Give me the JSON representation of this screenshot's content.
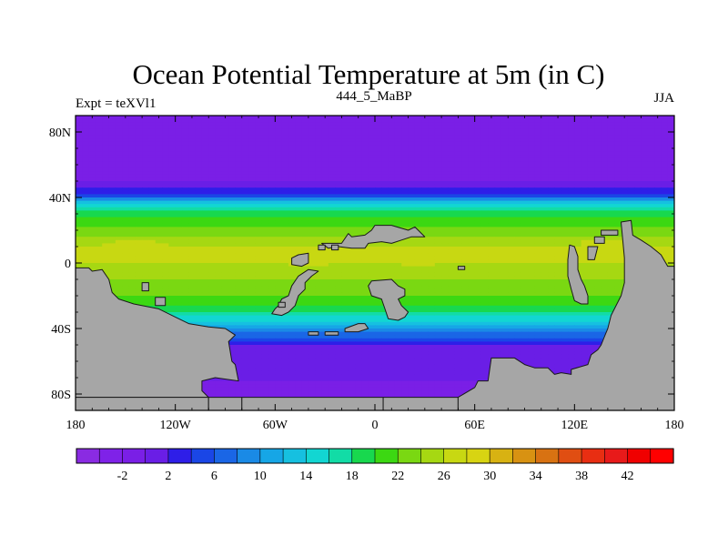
{
  "chart_data": {
    "type": "heatmap",
    "title": "Ocean Potential Temperature at 5m (in C)",
    "left_label": "Expt = teXVl1",
    "center_label": "444_5_MaBP",
    "right_label": "JJA",
    "units": "C",
    "x_range": [
      -180,
      180
    ],
    "y_range": [
      -90,
      90
    ],
    "x_ticks": [
      {
        "value": -180,
        "label": "180"
      },
      {
        "value": -120,
        "label": "120W"
      },
      {
        "value": -60,
        "label": "60W"
      },
      {
        "value": 0,
        "label": "0"
      },
      {
        "value": 60,
        "label": "60E"
      },
      {
        "value": 120,
        "label": "120E"
      },
      {
        "value": 180,
        "label": "180"
      }
    ],
    "y_ticks": [
      {
        "value": 80,
        "label": "80N"
      },
      {
        "value": 40,
        "label": "40N"
      },
      {
        "value": 0,
        "label": "0"
      },
      {
        "value": -40,
        "label": "40S"
      },
      {
        "value": -80,
        "label": "80S"
      }
    ],
    "colorbar": {
      "min": -6,
      "max": 46,
      "step": 2,
      "tick_values": [
        -2,
        2,
        6,
        10,
        14,
        18,
        22,
        26,
        30,
        34,
        38,
        42
      ],
      "tick_labels": [
        "-2",
        "2",
        "6",
        "10",
        "14",
        "18",
        "22",
        "26",
        "30",
        "34",
        "38",
        "42"
      ],
      "colors": [
        "#8a2be2",
        "#7f22e8",
        "#7a1fe6",
        "#6a1ee6",
        "#2e1ee8",
        "#1a46e6",
        "#1a66e6",
        "#1a8ae6",
        "#16a6e6",
        "#16c0e0",
        "#12d6d2",
        "#12dca6",
        "#18d84e",
        "#3cd812",
        "#7ad812",
        "#a6d812",
        "#c8d812",
        "#d8d412",
        "#d8b212",
        "#d89212",
        "#d87212",
        "#e04e12",
        "#e82e12",
        "#e81a1a",
        "#f00000",
        "#ff0000"
      ]
    },
    "zonal_mean_temperature": [
      {
        "lat": 90,
        "value": -1
      },
      {
        "lat": 52,
        "value": -1
      },
      {
        "lat": 45,
        "value": 2
      },
      {
        "lat": 40,
        "value": 6
      },
      {
        "lat": 37,
        "value": 13
      },
      {
        "lat": 30,
        "value": 19
      },
      {
        "lat": 20,
        "value": 23
      },
      {
        "lat": 10,
        "value": 26
      },
      {
        "lat": 0,
        "value": 26
      },
      {
        "lat": -10,
        "value": 24
      },
      {
        "lat": -20,
        "value": 22
      },
      {
        "lat": -30,
        "value": 18
      },
      {
        "lat": -38,
        "value": 12
      },
      {
        "lat": -45,
        "value": 6
      },
      {
        "lat": -52,
        "value": 1
      },
      {
        "lat": -90,
        "value": -1
      }
    ],
    "warm_anomalies": [
      {
        "lon": -145,
        "lat": 8,
        "value": 27.5
      },
      {
        "lon": -40,
        "lat": 4,
        "value": 27.5
      },
      {
        "lon": 25,
        "lat": 3,
        "value": 27
      },
      {
        "lon": 140,
        "lat": 10,
        "value": 27
      }
    ],
    "land_mask": [
      [
        [
          -170,
          -5
        ],
        [
          -164,
          -4
        ],
        [
          -160,
          -10
        ],
        [
          -158,
          -18
        ],
        [
          -154,
          -22
        ],
        [
          -145,
          -25
        ],
        [
          -130,
          -28
        ],
        [
          -120,
          -33
        ],
        [
          -112,
          -37
        ],
        [
          -100,
          -39
        ],
        [
          -90,
          -40
        ],
        [
          -84,
          -44
        ],
        [
          -88,
          -48
        ],
        [
          -86,
          -60
        ],
        [
          -84,
          -62
        ],
        [
          -82,
          -72
        ],
        [
          -96,
          -70
        ],
        [
          -104,
          -72
        ],
        [
          -104,
          -78
        ],
        [
          -100,
          -82
        ],
        [
          -180,
          -82
        ],
        [
          -180,
          -3
        ],
        [
          -172,
          -3
        ]
      ],
      [
        [
          -140,
          -12
        ],
        [
          -136,
          -12
        ],
        [
          -136,
          -17
        ],
        [
          -140,
          -17
        ]
      ],
      [
        [
          -132,
          -21
        ],
        [
          -126,
          -21
        ],
        [
          -126,
          -26
        ],
        [
          -132,
          -26
        ]
      ],
      [
        [
          -180,
          -82
        ],
        [
          -100,
          -82
        ],
        [
          -100,
          -90
        ],
        [
          -180,
          -90
        ]
      ],
      [
        [
          -100,
          -82
        ],
        [
          -80,
          -82
        ],
        [
          -80,
          -90
        ],
        [
          -100,
          -90
        ]
      ],
      [
        [
          -80,
          -82
        ],
        [
          5,
          -82
        ],
        [
          5,
          -90
        ],
        [
          -80,
          -90
        ]
      ],
      [
        [
          5,
          -82
        ],
        [
          50,
          -82
        ],
        [
          50,
          -90
        ],
        [
          5,
          -90
        ]
      ],
      [
        [
          50,
          -82
        ],
        [
          60,
          -76
        ],
        [
          62,
          -72
        ],
        [
          68,
          -72
        ],
        [
          70,
          -58
        ],
        [
          84,
          -58
        ],
        [
          90,
          -62
        ],
        [
          96,
          -64
        ],
        [
          104,
          -64
        ],
        [
          108,
          -68
        ],
        [
          112,
          -67
        ],
        [
          118,
          -68
        ],
        [
          118,
          -65
        ],
        [
          128,
          -62
        ],
        [
          130,
          -56
        ],
        [
          134,
          -53
        ],
        [
          136,
          -50
        ],
        [
          138,
          -45
        ],
        [
          140,
          -40
        ],
        [
          142,
          -32
        ],
        [
          148,
          -20
        ],
        [
          150,
          -12
        ],
        [
          150,
          3
        ],
        [
          148,
          25
        ],
        [
          154,
          26
        ],
        [
          155,
          17
        ],
        [
          160,
          14
        ],
        [
          166,
          10
        ],
        [
          172,
          5
        ],
        [
          176,
          -2
        ],
        [
          180,
          -2
        ],
        [
          180,
          -90
        ],
        [
          50,
          -90
        ]
      ],
      [
        [
          -52,
          -30
        ],
        [
          -48,
          -26
        ],
        [
          -46,
          -20
        ],
        [
          -42,
          -16
        ],
        [
          -42,
          -12
        ],
        [
          -38,
          -8
        ],
        [
          -34,
          -5
        ],
        [
          -40,
          -4
        ],
        [
          -46,
          -8
        ],
        [
          -50,
          -14
        ],
        [
          -52,
          -20
        ],
        [
          -56,
          -22
        ],
        [
          -58,
          -26
        ],
        [
          -60,
          -28
        ],
        [
          -62,
          -31
        ],
        [
          -56,
          -32
        ]
      ],
      [
        [
          -50,
          3
        ],
        [
          -46,
          5
        ],
        [
          -40,
          6
        ],
        [
          -40,
          0
        ],
        [
          -44,
          -2
        ],
        [
          -50,
          -1
        ]
      ],
      [
        [
          -32,
          12
        ],
        [
          -20,
          12
        ],
        [
          -16,
          18
        ],
        [
          -14,
          16
        ],
        [
          -6,
          17
        ],
        [
          -2,
          20
        ],
        [
          0,
          23
        ],
        [
          10,
          23
        ],
        [
          20,
          20
        ],
        [
          24,
          22
        ],
        [
          28,
          18
        ],
        [
          30,
          16
        ],
        [
          22,
          16
        ],
        [
          16,
          14
        ],
        [
          10,
          12
        ],
        [
          4,
          13
        ],
        [
          -4,
          12
        ],
        [
          -6,
          9
        ],
        [
          -14,
          9
        ],
        [
          -22,
          10
        ],
        [
          -28,
          9
        ]
      ],
      [
        [
          -2,
          -11
        ],
        [
          10,
          -10
        ],
        [
          14,
          -14
        ],
        [
          18,
          -16
        ],
        [
          18,
          -20
        ],
        [
          14,
          -22
        ],
        [
          16,
          -26
        ],
        [
          20,
          -30
        ],
        [
          18,
          -33
        ],
        [
          14,
          -35
        ],
        [
          8,
          -34
        ],
        [
          6,
          -28
        ],
        [
          4,
          -22
        ],
        [
          -2,
          -20
        ],
        [
          -4,
          -14
        ]
      ],
      [
        [
          -18,
          -40
        ],
        [
          -10,
          -37
        ],
        [
          -6,
          -37
        ],
        [
          -4,
          -40
        ],
        [
          -10,
          -42
        ],
        [
          -18,
          -42
        ]
      ],
      [
        [
          -40,
          -42
        ],
        [
          -34,
          -42
        ],
        [
          -34,
          -44
        ],
        [
          -40,
          -44
        ]
      ],
      [
        [
          -30,
          -42
        ],
        [
          -22,
          -42
        ],
        [
          -22,
          -44
        ],
        [
          -30,
          -44
        ]
      ],
      [
        [
          117,
          11
        ],
        [
          120,
          10
        ],
        [
          122,
          4
        ],
        [
          122,
          -4
        ],
        [
          124,
          -10
        ],
        [
          126,
          -14
        ],
        [
          128,
          -20
        ],
        [
          128,
          -25
        ],
        [
          124,
          -25
        ],
        [
          120,
          -23
        ],
        [
          118,
          -16
        ],
        [
          116,
          -8
        ],
        [
          116,
          2
        ]
      ],
      [
        [
          128,
          10
        ],
        [
          134,
          10
        ],
        [
          132,
          2
        ],
        [
          128,
          2
        ]
      ],
      [
        [
          132,
          16
        ],
        [
          138,
          16
        ],
        [
          138,
          12
        ],
        [
          132,
          12
        ]
      ],
      [
        [
          136,
          20
        ],
        [
          146,
          20
        ],
        [
          146,
          17
        ],
        [
          136,
          17
        ]
      ],
      [
        [
          50,
          -2
        ],
        [
          54,
          -2
        ],
        [
          54,
          -4
        ],
        [
          50,
          -4
        ]
      ],
      [
        [
          -34,
          11
        ],
        [
          -30,
          11
        ],
        [
          -30,
          8
        ],
        [
          -34,
          8
        ]
      ],
      [
        [
          -26,
          11
        ],
        [
          -22,
          11
        ],
        [
          -22,
          8
        ],
        [
          -26,
          8
        ]
      ],
      [
        [
          -58,
          -24
        ],
        [
          -54,
          -24
        ],
        [
          -54,
          -27
        ],
        [
          -58,
          -27
        ]
      ]
    ]
  }
}
